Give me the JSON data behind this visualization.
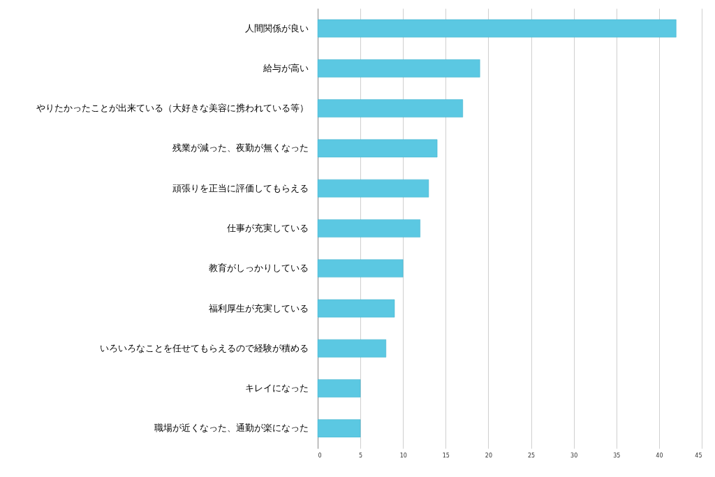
{
  "chart_data": {
    "type": "bar",
    "orientation": "horizontal",
    "categories": [
      "人間関係が良い",
      "給与が高い",
      "やりたかったことが出来ている（大好きな美容に携われている等）",
      "残業が減った、夜勤が無くなった",
      "頑張りを正当に評価してもらえる",
      "仕事が充実している",
      "教育がしっかりしている",
      "福利厚生が充実している",
      "いろいろなことを任せてもらえるので経験が積める",
      "キレイになった",
      "職場が近くなった、通勤が楽になった"
    ],
    "values": [
      42,
      19,
      17,
      14,
      13,
      12,
      10,
      9,
      8,
      5,
      5
    ],
    "color": "#5bc8e2",
    "xlim": [
      0,
      45
    ],
    "xticks": [
      0,
      5,
      10,
      15,
      20,
      25,
      30,
      35,
      40,
      45
    ],
    "grid": "x"
  }
}
